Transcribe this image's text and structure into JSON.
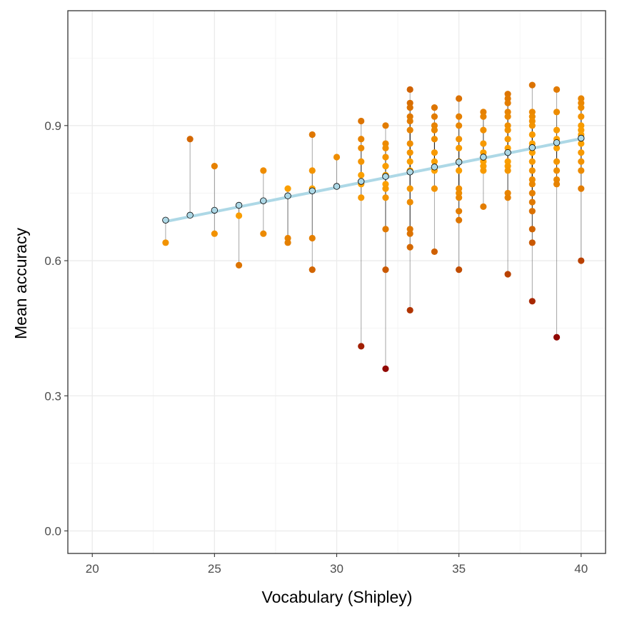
{
  "chart_data": {
    "type": "scatter",
    "title": "",
    "xlabel": "Vocabulary (Shipley)",
    "ylabel": "Mean accuracy",
    "xlim": [
      19,
      41
    ],
    "ylim": [
      -0.05,
      1.155
    ],
    "x_ticks": [
      20,
      25,
      30,
      35,
      40
    ],
    "x_tick_labels": [
      "20",
      "25",
      "30",
      "35",
      "40"
    ],
    "y_ticks": [
      0.0,
      0.3,
      0.6,
      0.9
    ],
    "y_tick_labels": [
      "0.0",
      "0.3",
      "0.6",
      "0.9"
    ],
    "grid": true,
    "legend": "none",
    "fit_line": {
      "color": "#add8e6",
      "x": [
        23,
        40
      ],
      "y": [
        0.687,
        0.871
      ]
    },
    "point_colors": {
      "low": "#8b0000",
      "high": "#ffa500",
      "predicted_fill": "#add8e6",
      "predicted_stroke": "#000000",
      "residual_line": "#000000"
    },
    "observed": [
      {
        "x": 23,
        "y": 0.64
      },
      {
        "x": 24,
        "y": 0.87
      },
      {
        "x": 25,
        "y": 0.81
      },
      {
        "x": 25,
        "y": 0.66
      },
      {
        "x": 26,
        "y": 0.7
      },
      {
        "x": 26,
        "y": 0.59
      },
      {
        "x": 27,
        "y": 0.8
      },
      {
        "x": 27,
        "y": 0.66
      },
      {
        "x": 28,
        "y": 0.76
      },
      {
        "x": 28,
        "y": 0.65
      },
      {
        "x": 28,
        "y": 0.64
      },
      {
        "x": 29,
        "y": 0.88
      },
      {
        "x": 29,
        "y": 0.8
      },
      {
        "x": 29,
        "y": 0.76
      },
      {
        "x": 29,
        "y": 0.65
      },
      {
        "x": 29,
        "y": 0.58
      },
      {
        "x": 30,
        "y": 0.83
      },
      {
        "x": 31,
        "y": 0.91
      },
      {
        "x": 31,
        "y": 0.87
      },
      {
        "x": 31,
        "y": 0.85
      },
      {
        "x": 31,
        "y": 0.82
      },
      {
        "x": 31,
        "y": 0.79
      },
      {
        "x": 31,
        "y": 0.77
      },
      {
        "x": 31,
        "y": 0.74
      },
      {
        "x": 31,
        "y": 0.41
      },
      {
        "x": 32,
        "y": 0.9
      },
      {
        "x": 32,
        "y": 0.86
      },
      {
        "x": 32,
        "y": 0.85
      },
      {
        "x": 32,
        "y": 0.83
      },
      {
        "x": 32,
        "y": 0.81
      },
      {
        "x": 32,
        "y": 0.79
      },
      {
        "x": 32,
        "y": 0.77
      },
      {
        "x": 32,
        "y": 0.76
      },
      {
        "x": 32,
        "y": 0.74
      },
      {
        "x": 32,
        "y": 0.67
      },
      {
        "x": 32,
        "y": 0.58
      },
      {
        "x": 32,
        "y": 0.36
      },
      {
        "x": 33,
        "y": 0.98
      },
      {
        "x": 33,
        "y": 0.95
      },
      {
        "x": 33,
        "y": 0.94
      },
      {
        "x": 33,
        "y": 0.92
      },
      {
        "x": 33,
        "y": 0.91
      },
      {
        "x": 33,
        "y": 0.89
      },
      {
        "x": 33,
        "y": 0.86
      },
      {
        "x": 33,
        "y": 0.84
      },
      {
        "x": 33,
        "y": 0.82
      },
      {
        "x": 33,
        "y": 0.8
      },
      {
        "x": 33,
        "y": 0.76
      },
      {
        "x": 33,
        "y": 0.73
      },
      {
        "x": 33,
        "y": 0.67
      },
      {
        "x": 33,
        "y": 0.66
      },
      {
        "x": 33,
        "y": 0.63
      },
      {
        "x": 33,
        "y": 0.49
      },
      {
        "x": 34,
        "y": 0.94
      },
      {
        "x": 34,
        "y": 0.92
      },
      {
        "x": 34,
        "y": 0.9
      },
      {
        "x": 34,
        "y": 0.89
      },
      {
        "x": 34,
        "y": 0.87
      },
      {
        "x": 34,
        "y": 0.84
      },
      {
        "x": 34,
        "y": 0.82
      },
      {
        "x": 34,
        "y": 0.8
      },
      {
        "x": 34,
        "y": 0.76
      },
      {
        "x": 34,
        "y": 0.62
      },
      {
        "x": 35,
        "y": 0.96
      },
      {
        "x": 35,
        "y": 0.92
      },
      {
        "x": 35,
        "y": 0.9
      },
      {
        "x": 35,
        "y": 0.87
      },
      {
        "x": 35,
        "y": 0.85
      },
      {
        "x": 35,
        "y": 0.82
      },
      {
        "x": 35,
        "y": 0.8
      },
      {
        "x": 35,
        "y": 0.76
      },
      {
        "x": 35,
        "y": 0.75
      },
      {
        "x": 35,
        "y": 0.74
      },
      {
        "x": 35,
        "y": 0.71
      },
      {
        "x": 35,
        "y": 0.69
      },
      {
        "x": 35,
        "y": 0.58
      },
      {
        "x": 36,
        "y": 0.93
      },
      {
        "x": 36,
        "y": 0.92
      },
      {
        "x": 36,
        "y": 0.89
      },
      {
        "x": 36,
        "y": 0.86
      },
      {
        "x": 36,
        "y": 0.84
      },
      {
        "x": 36,
        "y": 0.82
      },
      {
        "x": 36,
        "y": 0.81
      },
      {
        "x": 36,
        "y": 0.8
      },
      {
        "x": 36,
        "y": 0.72
      },
      {
        "x": 37,
        "y": 0.97
      },
      {
        "x": 37,
        "y": 0.96
      },
      {
        "x": 37,
        "y": 0.95
      },
      {
        "x": 37,
        "y": 0.93
      },
      {
        "x": 37,
        "y": 0.92
      },
      {
        "x": 37,
        "y": 0.9
      },
      {
        "x": 37,
        "y": 0.89
      },
      {
        "x": 37,
        "y": 0.87
      },
      {
        "x": 37,
        "y": 0.85
      },
      {
        "x": 37,
        "y": 0.82
      },
      {
        "x": 37,
        "y": 0.81
      },
      {
        "x": 37,
        "y": 0.8
      },
      {
        "x": 37,
        "y": 0.75
      },
      {
        "x": 37,
        "y": 0.74
      },
      {
        "x": 37,
        "y": 0.57
      },
      {
        "x": 38,
        "y": 0.99
      },
      {
        "x": 38,
        "y": 0.93
      },
      {
        "x": 38,
        "y": 0.92
      },
      {
        "x": 38,
        "y": 0.91
      },
      {
        "x": 38,
        "y": 0.9
      },
      {
        "x": 38,
        "y": 0.88
      },
      {
        "x": 38,
        "y": 0.86
      },
      {
        "x": 38,
        "y": 0.84
      },
      {
        "x": 38,
        "y": 0.82
      },
      {
        "x": 38,
        "y": 0.8
      },
      {
        "x": 38,
        "y": 0.78
      },
      {
        "x": 38,
        "y": 0.77
      },
      {
        "x": 38,
        "y": 0.75
      },
      {
        "x": 38,
        "y": 0.73
      },
      {
        "x": 38,
        "y": 0.71
      },
      {
        "x": 38,
        "y": 0.67
      },
      {
        "x": 38,
        "y": 0.64
      },
      {
        "x": 38,
        "y": 0.51
      },
      {
        "x": 39,
        "y": 0.98
      },
      {
        "x": 39,
        "y": 0.93
      },
      {
        "x": 39,
        "y": 0.89
      },
      {
        "x": 39,
        "y": 0.87
      },
      {
        "x": 39,
        "y": 0.85
      },
      {
        "x": 39,
        "y": 0.82
      },
      {
        "x": 39,
        "y": 0.8
      },
      {
        "x": 39,
        "y": 0.78
      },
      {
        "x": 39,
        "y": 0.77
      },
      {
        "x": 39,
        "y": 0.43
      },
      {
        "x": 40,
        "y": 0.96
      },
      {
        "x": 40,
        "y": 0.95
      },
      {
        "x": 40,
        "y": 0.94
      },
      {
        "x": 40,
        "y": 0.92
      },
      {
        "x": 40,
        "y": 0.9
      },
      {
        "x": 40,
        "y": 0.89
      },
      {
        "x": 40,
        "y": 0.88
      },
      {
        "x": 40,
        "y": 0.86
      },
      {
        "x": 40,
        "y": 0.84
      },
      {
        "x": 40,
        "y": 0.82
      },
      {
        "x": 40,
        "y": 0.8
      },
      {
        "x": 40,
        "y": 0.76
      },
      {
        "x": 40,
        "y": 0.6
      }
    ],
    "predicted": [
      {
        "x": 23,
        "y": 0.69
      },
      {
        "x": 24,
        "y": 0.701
      },
      {
        "x": 25,
        "y": 0.712
      },
      {
        "x": 26,
        "y": 0.723
      },
      {
        "x": 27,
        "y": 0.733
      },
      {
        "x": 28,
        "y": 0.744
      },
      {
        "x": 29,
        "y": 0.755
      },
      {
        "x": 30,
        "y": 0.765
      },
      {
        "x": 31,
        "y": 0.776
      },
      {
        "x": 32,
        "y": 0.787
      },
      {
        "x": 33,
        "y": 0.797
      },
      {
        "x": 34,
        "y": 0.808
      },
      {
        "x": 35,
        "y": 0.819
      },
      {
        "x": 36,
        "y": 0.83
      },
      {
        "x": 37,
        "y": 0.84
      },
      {
        "x": 38,
        "y": 0.851
      },
      {
        "x": 39,
        "y": 0.862
      },
      {
        "x": 40,
        "y": 0.872
      }
    ]
  }
}
